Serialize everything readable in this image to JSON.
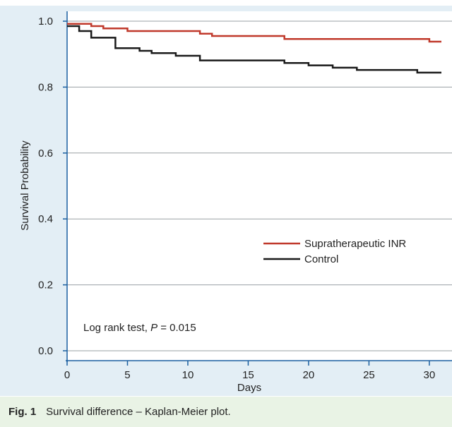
{
  "chart_data": {
    "type": "line",
    "step": true,
    "xlabel": "Days",
    "ylabel": "Survival Probability",
    "xlim": [
      0,
      31
    ],
    "ylim": [
      -0.03,
      1.03
    ],
    "x_ticks": [
      "0",
      "5",
      "10",
      "15",
      "20",
      "25",
      "30"
    ],
    "y_ticks": [
      "0.0",
      "0.2",
      "0.4",
      "0.6",
      "0.8",
      "1.0"
    ],
    "grid": "horizontal",
    "legend": "center-right",
    "annotation": {
      "prefix": "Log rank test, ",
      "italic": "P",
      "suffix": " = 0.015"
    },
    "series": [
      {
        "name": "Supratherapeutic INR",
        "color": "#c0392b",
        "points": [
          [
            0,
            0.992
          ],
          [
            2,
            0.985
          ],
          [
            3,
            0.978
          ],
          [
            5,
            0.97
          ],
          [
            11,
            0.962
          ],
          [
            12,
            0.955
          ],
          [
            18,
            0.946
          ],
          [
            30,
            0.938
          ],
          [
            31,
            0.938
          ]
        ]
      },
      {
        "name": "Control",
        "color": "#1a1a1a",
        "points": [
          [
            0,
            0.985
          ],
          [
            1,
            0.97
          ],
          [
            2,
            0.95
          ],
          [
            4,
            0.918
          ],
          [
            6,
            0.91
          ],
          [
            7,
            0.903
          ],
          [
            9,
            0.895
          ],
          [
            11,
            0.881
          ],
          [
            18,
            0.873
          ],
          [
            20,
            0.866
          ],
          [
            22,
            0.859
          ],
          [
            24,
            0.852
          ],
          [
            29,
            0.844
          ],
          [
            31,
            0.844
          ]
        ]
      }
    ]
  },
  "caption": {
    "fig_no": "Fig. 1",
    "text": "Survival difference – Kaplan-Meier plot."
  }
}
